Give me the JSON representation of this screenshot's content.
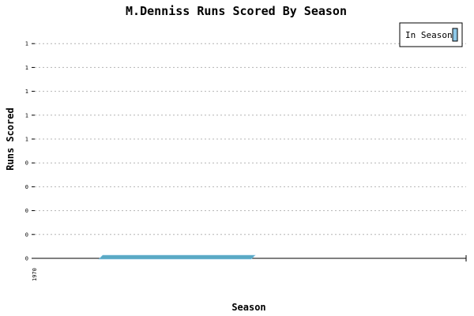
{
  "chart_data": {
    "type": "bar",
    "title": "M.Denniss Runs Scored By Season",
    "xlabel": "Season",
    "ylabel": "Runs Scored",
    "x_tick_labels": [
      "1970"
    ],
    "y_tick_labels": [
      "0",
      "0",
      "0",
      "0",
      "0",
      "1",
      "1",
      "1",
      "1",
      "1"
    ],
    "categories": [
      "1970"
    ],
    "series": [
      {
        "name": "In Season",
        "color": "#5aa9c4",
        "values": [
          0
        ]
      }
    ],
    "ylim": [
      0,
      1
    ],
    "grid": true,
    "grid_style": "dotted",
    "legend_position": "top-right"
  }
}
